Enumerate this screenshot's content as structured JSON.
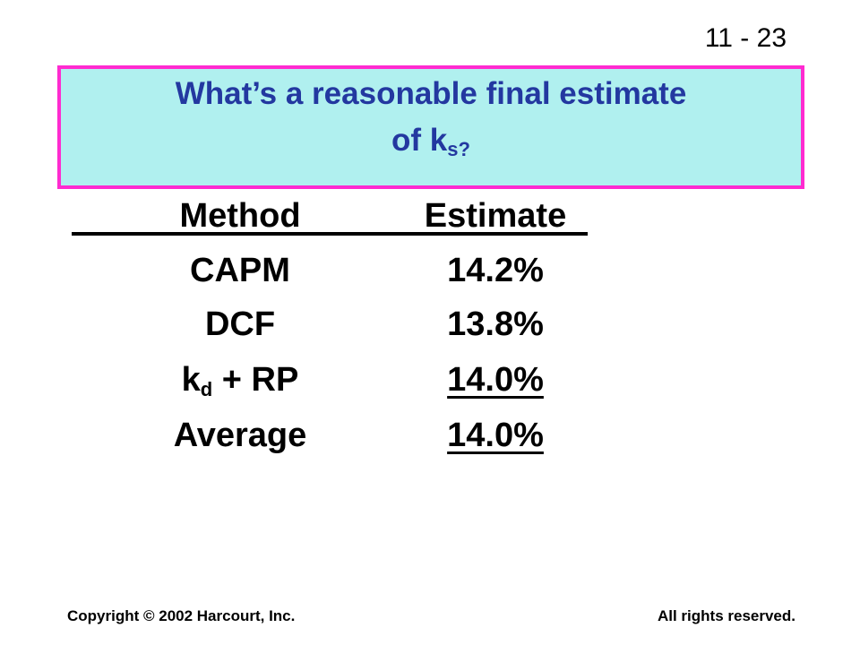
{
  "slide_number": "11 - 23",
  "title": {
    "line1": "What’s a reasonable final estimate",
    "line2": "of k",
    "subscript": "s",
    "end": "?"
  },
  "table": {
    "header": [
      "Method",
      "Estimate"
    ],
    "rows": [
      {
        "method": "CAPM",
        "estimate": "14.2%"
      },
      {
        "method": "DCF",
        "estimate": "13.8%"
      },
      {
        "method": "k",
        "method_subscript": "d",
        "method_rest": " + RP",
        "estimate": "14.0%"
      },
      {
        "method": "Average",
        "estimate": "14.0%"
      }
    ]
  },
  "footer": {
    "left": "Copyright © 2002 Harcourt, Inc.",
    "right": "All rights reserved."
  }
}
